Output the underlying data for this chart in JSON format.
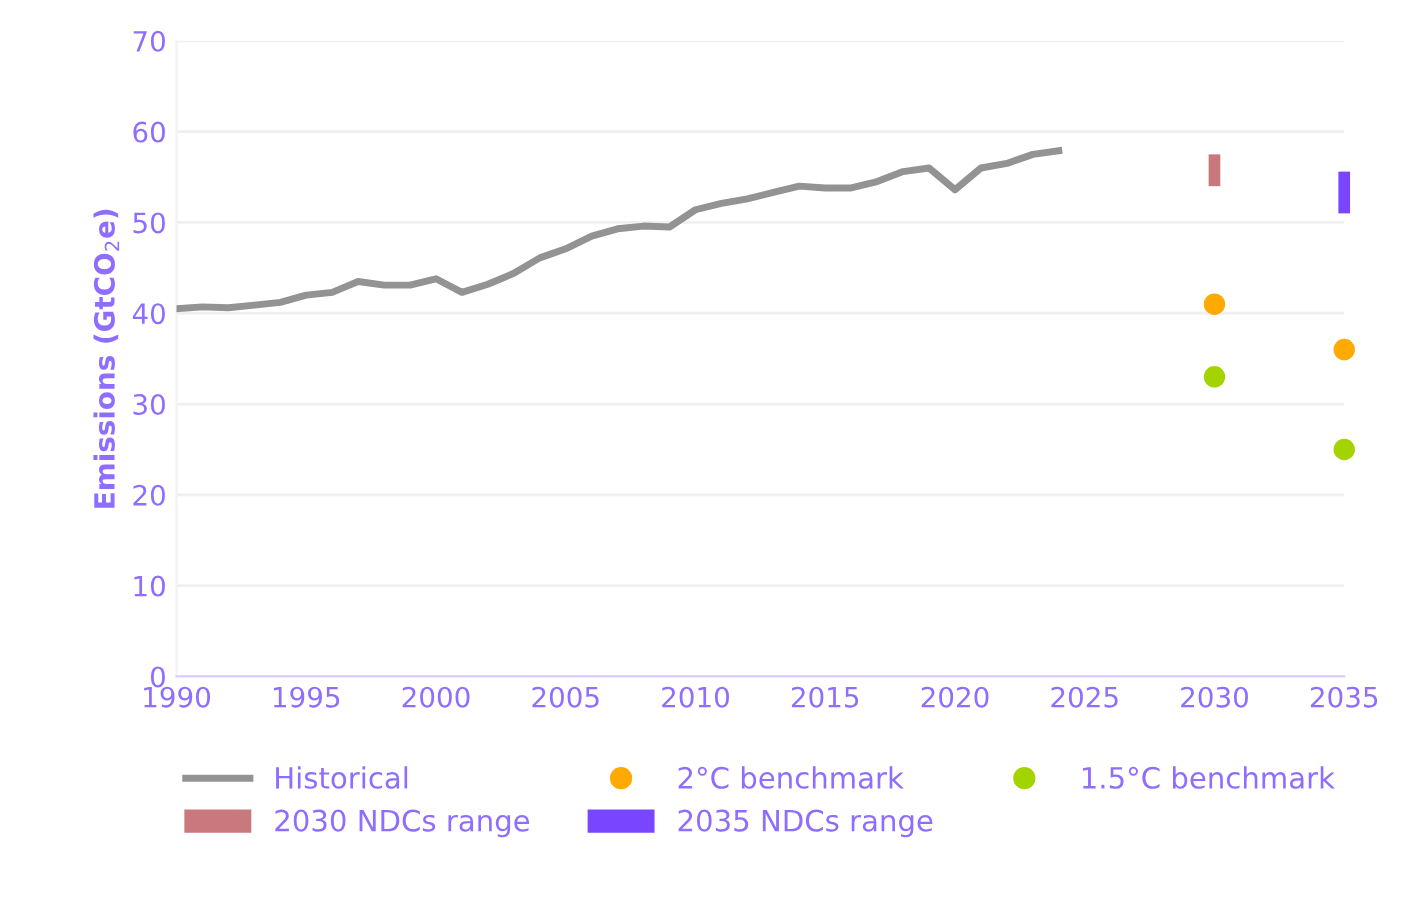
{
  "chart_data": {
    "type": "line",
    "ylabel": "Emissions (GtCO$_{2}$e)",
    "xlim": [
      1990,
      2035
    ],
    "xticks": [
      1990,
      1995,
      2000,
      2005,
      2010,
      2015,
      2020,
      2025,
      2030,
      2035
    ],
    "ylim": [
      0,
      70
    ],
    "yticks": [
      0,
      10,
      20,
      30,
      40,
      50,
      60,
      70
    ],
    "grid": "y",
    "legend": "bottom",
    "series": [
      {
        "name": "Historical",
        "color": "#939393",
        "x": [
          1990,
          1991,
          1992,
          1993,
          1994,
          1995,
          1996,
          1997,
          1998,
          1999,
          2000,
          2001,
          2002,
          2003,
          2004,
          2005,
          2006,
          2007,
          2008,
          2009,
          2010,
          2011,
          2012,
          2013,
          2014,
          2015,
          2016,
          2017,
          2018,
          2019,
          2020,
          2021,
          2022,
          2023,
          2024
        ],
        "values": [
          40.5,
          40.7,
          40.6,
          40.9,
          41.2,
          42.0,
          42.3,
          43.5,
          43.1,
          43.1,
          43.8,
          42.3,
          43.2,
          44.4,
          46.1,
          47.1,
          48.5,
          49.3,
          49.6,
          49.5,
          51.4,
          52.1,
          52.6,
          53.3,
          54.0,
          53.8,
          53.8,
          54.5,
          55.6,
          56.0,
          53.6,
          56.0,
          56.5,
          57.5,
          57.9
        ]
      },
      {
        "name": "2°C benchmark",
        "type": "scatter",
        "color": "#ffaa00",
        "marker": "circle",
        "x": [
          2030,
          2035
        ],
        "values": [
          41,
          36
        ]
      },
      {
        "name": "1.5°C benchmark",
        "type": "scatter",
        "color": "#a3d400",
        "marker": "circle",
        "x": [
          2030,
          2035
        ],
        "values": [
          33,
          25
        ]
      },
      {
        "name": "2030 NDCs range",
        "type": "bar",
        "color": "#c9787e",
        "x": [
          2030
        ],
        "base": [
          54
        ],
        "values": [
          3.5
        ]
      },
      {
        "name": "2035 NDCs range",
        "type": "bar",
        "color": "#7a45ff",
        "x": [
          2035
        ],
        "base": [
          51
        ],
        "values": [
          4.6
        ]
      }
    ]
  }
}
